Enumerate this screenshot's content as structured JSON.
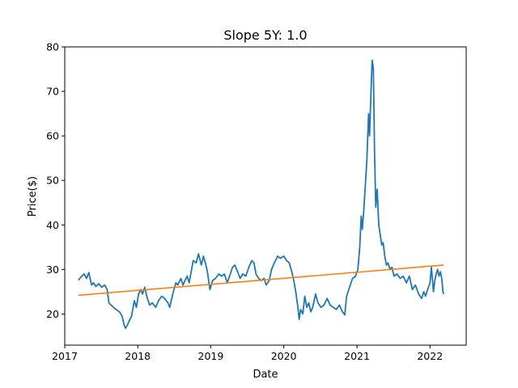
{
  "chart_data": {
    "type": "line",
    "title": "Slope 5Y: 1.0",
    "xlabel": "Date",
    "ylabel": "Price($)",
    "x_ticks": [
      "2017",
      "2018",
      "2019",
      "2020",
      "2021",
      "2022"
    ],
    "y_ticks": [
      "20",
      "30",
      "40",
      "50",
      "60",
      "70",
      "80"
    ],
    "xlim": [
      "2017-01-01",
      "2022-07-01"
    ],
    "ylim": [
      13,
      80
    ],
    "grid": false,
    "legend": "none",
    "series": [
      {
        "kind": "price",
        "color": "#1f77b4",
        "points": [
          [
            "2017-03-10",
            27.6
          ],
          [
            "2017-03-25",
            28.4
          ],
          [
            "2017-04-08",
            29.0
          ],
          [
            "2017-04-20",
            28.0
          ],
          [
            "2017-05-01",
            29.3
          ],
          [
            "2017-05-15",
            26.5
          ],
          [
            "2017-05-25",
            27.0
          ],
          [
            "2017-06-05",
            26.2
          ],
          [
            "2017-06-20",
            26.8
          ],
          [
            "2017-07-05",
            26.0
          ],
          [
            "2017-07-20",
            26.5
          ],
          [
            "2017-08-01",
            25.5
          ],
          [
            "2017-08-10",
            22.5
          ],
          [
            "2017-08-20",
            22.0
          ],
          [
            "2017-09-01",
            21.5
          ],
          [
            "2017-09-15",
            21.0
          ],
          [
            "2017-10-01",
            20.5
          ],
          [
            "2017-10-15",
            19.5
          ],
          [
            "2017-10-25",
            17.5
          ],
          [
            "2017-11-01",
            16.8
          ],
          [
            "2017-11-10",
            17.5
          ],
          [
            "2017-11-20",
            18.5
          ],
          [
            "2017-12-01",
            19.5
          ],
          [
            "2017-12-15",
            23.0
          ],
          [
            "2017-12-25",
            21.5
          ],
          [
            "2018-01-05",
            24.5
          ],
          [
            "2018-01-15",
            25.5
          ],
          [
            "2018-01-25",
            24.5
          ],
          [
            "2018-02-05",
            26.0
          ],
          [
            "2018-02-15",
            24.0
          ],
          [
            "2018-03-01",
            22.0
          ],
          [
            "2018-03-15",
            22.5
          ],
          [
            "2018-04-01",
            21.5
          ],
          [
            "2018-04-15",
            23.0
          ],
          [
            "2018-05-01",
            24.0
          ],
          [
            "2018-05-15",
            23.5
          ],
          [
            "2018-06-01",
            22.5
          ],
          [
            "2018-06-10",
            21.5
          ],
          [
            "2018-06-25",
            24.5
          ],
          [
            "2018-07-10",
            27.0
          ],
          [
            "2018-07-20",
            26.5
          ],
          [
            "2018-08-05",
            28.0
          ],
          [
            "2018-08-15",
            26.5
          ],
          [
            "2018-08-25",
            27.5
          ],
          [
            "2018-09-05",
            28.5
          ],
          [
            "2018-09-15",
            27.0
          ],
          [
            "2018-09-25",
            29.5
          ],
          [
            "2018-10-05",
            32.0
          ],
          [
            "2018-10-20",
            31.5
          ],
          [
            "2018-11-01",
            33.5
          ],
          [
            "2018-11-15",
            31.0
          ],
          [
            "2018-11-25",
            33.0
          ],
          [
            "2018-12-05",
            31.5
          ],
          [
            "2018-12-15",
            29.5
          ],
          [
            "2018-12-28",
            25.5
          ],
          [
            "2019-01-10",
            27.5
          ],
          [
            "2019-01-25",
            28.0
          ],
          [
            "2019-02-10",
            29.0
          ],
          [
            "2019-02-25",
            28.5
          ],
          [
            "2019-03-10",
            29.0
          ],
          [
            "2019-03-25",
            27.0
          ],
          [
            "2019-04-05",
            28.5
          ],
          [
            "2019-04-20",
            30.5
          ],
          [
            "2019-05-01",
            31.0
          ],
          [
            "2019-05-15",
            29.5
          ],
          [
            "2019-05-28",
            28.0
          ],
          [
            "2019-06-10",
            29.0
          ],
          [
            "2019-06-25",
            28.5
          ],
          [
            "2019-07-10",
            30.5
          ],
          [
            "2019-07-25",
            32.0
          ],
          [
            "2019-08-05",
            31.5
          ],
          [
            "2019-08-15",
            29.0
          ],
          [
            "2019-08-28",
            28.0
          ],
          [
            "2019-09-10",
            27.5
          ],
          [
            "2019-09-25",
            28.0
          ],
          [
            "2019-10-05",
            26.5
          ],
          [
            "2019-10-20",
            27.5
          ],
          [
            "2019-11-01",
            30.0
          ],
          [
            "2019-11-15",
            31.5
          ],
          [
            "2019-12-01",
            33.0
          ],
          [
            "2019-12-15",
            32.5
          ],
          [
            "2020-01-01",
            33.0
          ],
          [
            "2020-01-15",
            32.0
          ],
          [
            "2020-01-28",
            31.5
          ],
          [
            "2020-02-10",
            29.5
          ],
          [
            "2020-02-20",
            27.5
          ],
          [
            "2020-03-01",
            25.0
          ],
          [
            "2020-03-10",
            22.0
          ],
          [
            "2020-03-18",
            18.8
          ],
          [
            "2020-03-25",
            21.0
          ],
          [
            "2020-04-05",
            20.0
          ],
          [
            "2020-04-15",
            24.0
          ],
          [
            "2020-04-25",
            21.5
          ],
          [
            "2020-05-05",
            22.5
          ],
          [
            "2020-05-15",
            20.5
          ],
          [
            "2020-05-25",
            21.5
          ],
          [
            "2020-06-08",
            24.5
          ],
          [
            "2020-06-20",
            22.5
          ],
          [
            "2020-07-05",
            21.5
          ],
          [
            "2020-07-20",
            22.0
          ],
          [
            "2020-08-05",
            23.5
          ],
          [
            "2020-08-20",
            22.0
          ],
          [
            "2020-09-05",
            21.5
          ],
          [
            "2020-09-20",
            21.0
          ],
          [
            "2020-10-05",
            22.0
          ],
          [
            "2020-10-20",
            20.5
          ],
          [
            "2020-11-01",
            19.8
          ],
          [
            "2020-11-10",
            24.0
          ],
          [
            "2020-11-25",
            26.0
          ],
          [
            "2020-12-10",
            28.0
          ],
          [
            "2020-12-25",
            28.5
          ],
          [
            "2021-01-05",
            30.0
          ],
          [
            "2021-01-15",
            35.0
          ],
          [
            "2021-01-22",
            42.0
          ],
          [
            "2021-01-28",
            39.0
          ],
          [
            "2021-02-05",
            44.0
          ],
          [
            "2021-02-12",
            49.0
          ],
          [
            "2021-02-20",
            55.0
          ],
          [
            "2021-02-28",
            65.0
          ],
          [
            "2021-03-05",
            60.0
          ],
          [
            "2021-03-12",
            70.0
          ],
          [
            "2021-03-18",
            77.0
          ],
          [
            "2021-03-24",
            75.0
          ],
          [
            "2021-03-30",
            56.0
          ],
          [
            "2021-04-05",
            44.0
          ],
          [
            "2021-04-12",
            48.0
          ],
          [
            "2021-04-20",
            40.0
          ],
          [
            "2021-04-28",
            37.5
          ],
          [
            "2021-05-05",
            35.5
          ],
          [
            "2021-05-12",
            36.0
          ],
          [
            "2021-05-20",
            33.0
          ],
          [
            "2021-05-28",
            31.0
          ],
          [
            "2021-06-05",
            31.5
          ],
          [
            "2021-06-15",
            30.0
          ],
          [
            "2021-06-25",
            30.5
          ],
          [
            "2021-07-05",
            28.5
          ],
          [
            "2021-07-20",
            29.0
          ],
          [
            "2021-08-05",
            28.0
          ],
          [
            "2021-08-20",
            28.5
          ],
          [
            "2021-09-05",
            27.0
          ],
          [
            "2021-09-20",
            28.5
          ],
          [
            "2021-10-05",
            25.5
          ],
          [
            "2021-10-20",
            26.5
          ],
          [
            "2021-11-05",
            24.5
          ],
          [
            "2021-11-20",
            23.5
          ],
          [
            "2021-12-01",
            25.0
          ],
          [
            "2021-12-10",
            24.0
          ],
          [
            "2021-12-20",
            25.5
          ],
          [
            "2022-01-01",
            27.0
          ],
          [
            "2022-01-08",
            30.5
          ],
          [
            "2022-01-12",
            28.5
          ],
          [
            "2022-01-18",
            25.0
          ],
          [
            "2022-01-25",
            27.5
          ],
          [
            "2022-02-01",
            29.0
          ],
          [
            "2022-02-08",
            30.0
          ],
          [
            "2022-02-15",
            28.5
          ],
          [
            "2022-02-22",
            29.5
          ],
          [
            "2022-03-01",
            28.0
          ],
          [
            "2022-03-07",
            25.0
          ],
          [
            "2022-03-10",
            24.5
          ]
        ]
      },
      {
        "kind": "trend",
        "color": "#ff7f0e",
        "points": [
          [
            "2017-03-10",
            24.2
          ],
          [
            "2022-03-10",
            31.0
          ]
        ]
      }
    ]
  }
}
